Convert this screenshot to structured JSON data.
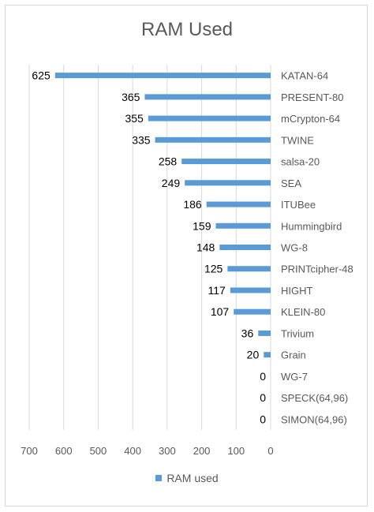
{
  "chart_data": {
    "type": "bar",
    "orientation": "horizontal",
    "title": "RAM Used",
    "categories": [
      "KATAN-64",
      "PRESENT-80",
      "mCrypton-64",
      "TWINE",
      "salsa-20",
      "SEA",
      "ITUBee",
      "Hummingbird",
      "WG-8",
      "PRINTcipher-48",
      "HIGHT",
      "KLEIN-80",
      "Trivium",
      "Grain",
      "WG-7",
      "SPECK(64,96)",
      "SIMON(64,96)"
    ],
    "series": [
      {
        "name": "RAM used",
        "values": [
          625,
          365,
          355,
          335,
          258,
          249,
          186,
          159,
          148,
          125,
          117,
          107,
          36,
          20,
          0,
          0,
          0
        ]
      }
    ],
    "data_labels": [
      "625",
      "365",
      "355",
      "335",
      "258",
      "249",
      "186",
      "159",
      "148",
      "125",
      "117",
      "107",
      "36",
      "20",
      "0",
      "0",
      "0"
    ],
    "xlim": [
      0,
      700
    ],
    "x_reversed": true,
    "x_ticks": [
      "700",
      "600",
      "500",
      "400",
      "300",
      "200",
      "100",
      "0"
    ],
    "grid": true,
    "legend_position": "bottom",
    "colors": {
      "bar": "#5b9bd5",
      "grid": "#d9d9d9",
      "text": "#595959",
      "label": "#000000"
    }
  }
}
